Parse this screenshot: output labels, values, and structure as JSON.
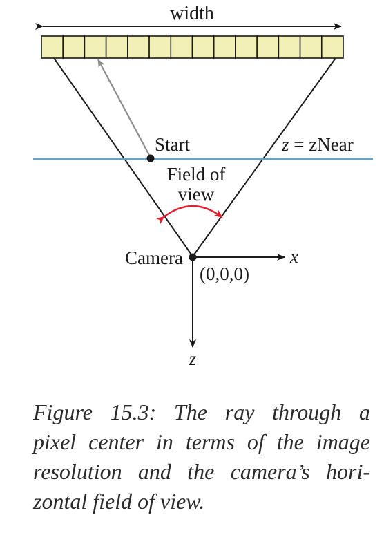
{
  "diagram": {
    "width_label": "width",
    "start_label": "Start",
    "znear_var": "z",
    "znear_eq": " = zNear",
    "fov_line1": "Field of",
    "fov_line2": "view",
    "camera_label": "Camera",
    "origin_label": "(0,0,0)",
    "x_axis_label": "x",
    "z_axis_label": "z",
    "pixel_count": 14,
    "colors": {
      "pixel_fill": "#f2f0b6",
      "znear_line": "#5aa6cc",
      "fov_arc": "#e41e2b",
      "ray": "#8c8c8c",
      "ink": "#1a1a1a"
    }
  },
  "caption": {
    "lines": [
      "Figure 15.3: The ray through a",
      "pixel center in terms of the image",
      "resolution and the camera’s hori-",
      "zontal field of view."
    ]
  }
}
